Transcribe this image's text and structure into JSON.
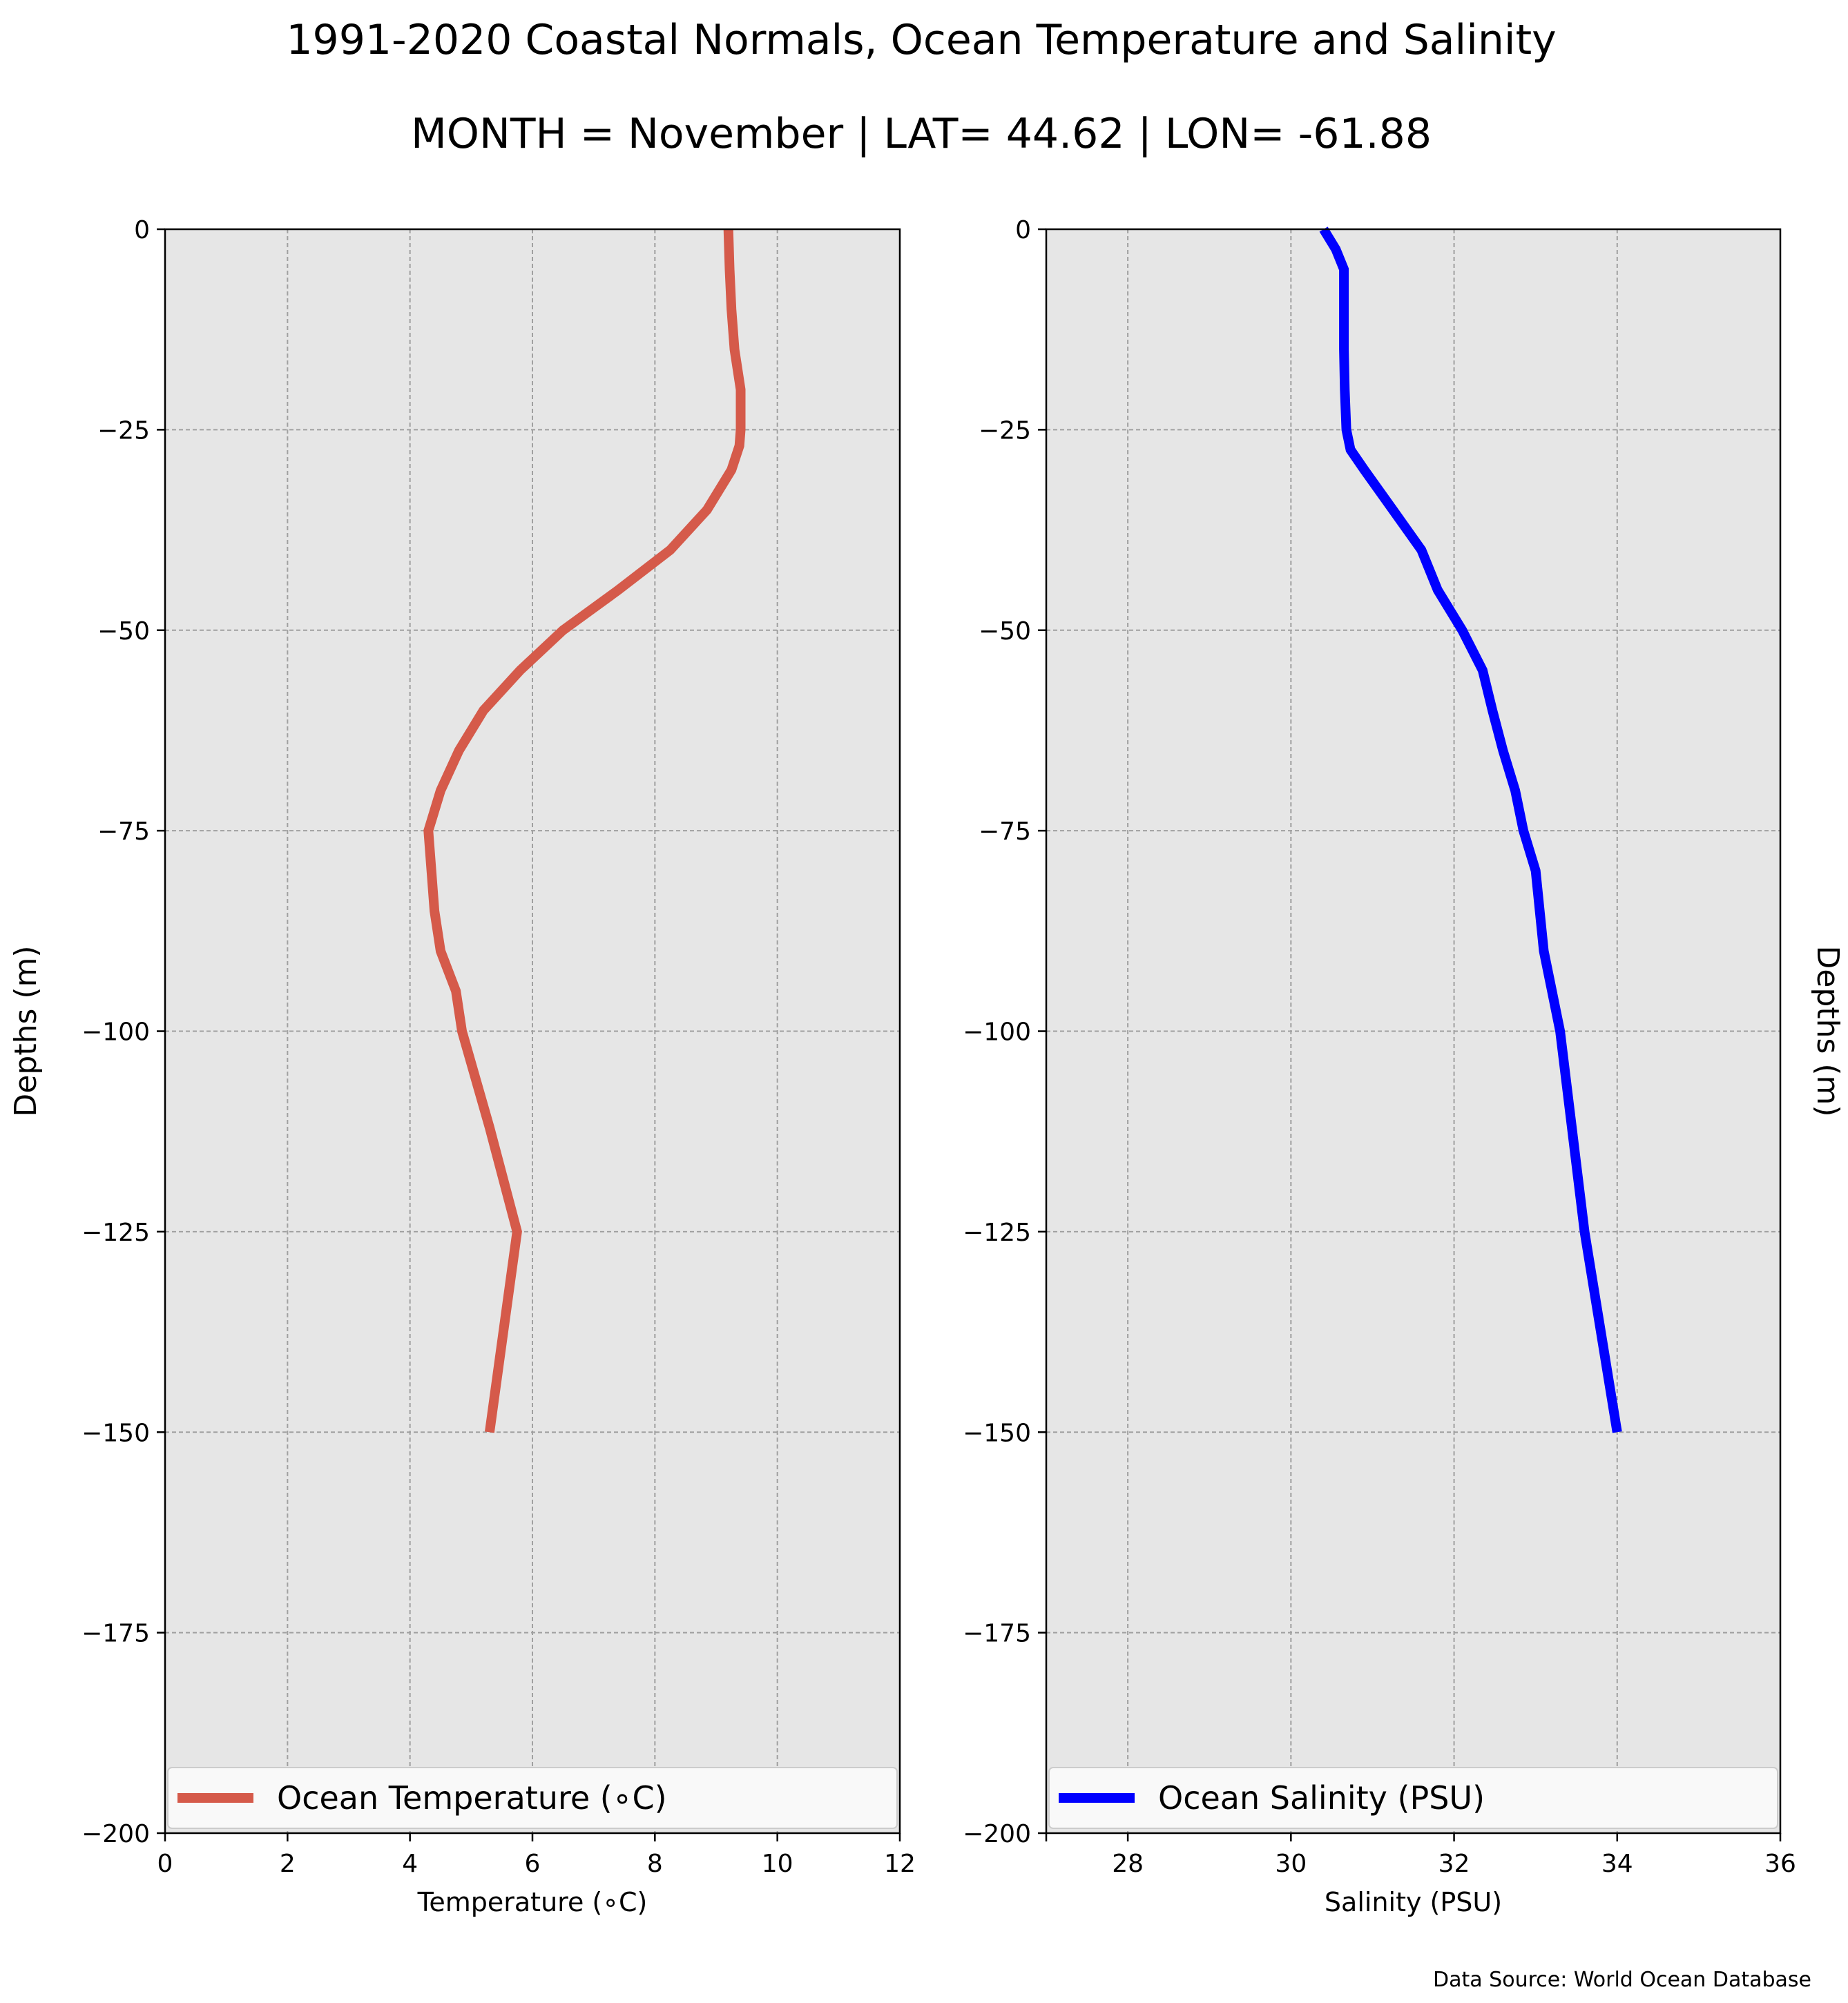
{
  "figure": {
    "title_line1": "1991-2020 Coastal Normals, Ocean Temperature and Salinity",
    "title_line2": "MONTH = November | LAT= 44.62 | LON= -61.88",
    "source": "Data Source: World Ocean Database"
  },
  "chart_data": [
    {
      "type": "line",
      "ylabel": "Depths (m)",
      "xlabel": "Temperature (∘C)",
      "xlim": [
        0,
        12
      ],
      "ylim": [
        -200,
        0
      ],
      "xticks": [
        0,
        2,
        4,
        6,
        8,
        10,
        12
      ],
      "yticks": [
        0,
        -25,
        -50,
        -75,
        -100,
        -125,
        -150,
        -175,
        -200
      ],
      "ytick_labels": [
        "0",
        "−25",
        "−50",
        "−75",
        "−100",
        "−125",
        "−150",
        "−175",
        "−200"
      ],
      "grid": true,
      "legend_placement": "bottom",
      "series": [
        {
          "name": "Ocean Temperature (∘C)",
          "color": "#d55a4a",
          "x": [
            9.2,
            9.22,
            9.25,
            9.3,
            9.4,
            9.4,
            9.38,
            9.25,
            8.85,
            8.25,
            7.4,
            6.5,
            5.8,
            5.2,
            4.8,
            4.5,
            4.3,
            4.35,
            4.4,
            4.5,
            4.75,
            4.85,
            5.3,
            5.75,
            5.3
          ],
          "y": [
            0,
            -5,
            -10,
            -15,
            -20,
            -25,
            -27,
            -30,
            -35,
            -40,
            -45,
            -50,
            -55,
            -60,
            -65,
            -70,
            -75,
            -80,
            -85,
            -90,
            -95,
            -100,
            -112,
            -125,
            -150
          ]
        }
      ]
    },
    {
      "type": "line",
      "ylabel": "Depths (m)",
      "xlabel": "Salinity (PSU)",
      "xlim": [
        27,
        36
      ],
      "ylim": [
        -200,
        0
      ],
      "xticks": [
        28,
        30,
        32,
        34,
        36
      ],
      "yticks": [
        0,
        -25,
        -50,
        -75,
        -100,
        -125,
        -150,
        -175,
        -200
      ],
      "ytick_labels": [
        "0",
        "−25",
        "−50",
        "−75",
        "−100",
        "−125",
        "−150",
        "−175",
        "−200"
      ],
      "grid": true,
      "legend_placement": "bottom",
      "series": [
        {
          "name": "Ocean Salinity (PSU)",
          "color": "#0000ff",
          "x": [
            30.4,
            30.55,
            30.65,
            30.65,
            30.65,
            30.66,
            30.68,
            30.73,
            30.9,
            31.25,
            31.6,
            31.8,
            32.1,
            32.35,
            32.47,
            32.6,
            32.75,
            32.85,
            33.0,
            33.1,
            33.2,
            33.3,
            33.6,
            34.0
          ],
          "y": [
            0,
            -2.5,
            -5,
            -10,
            -15,
            -20,
            -25,
            -27.5,
            -30,
            -35,
            -40,
            -45,
            -50,
            -55,
            -60,
            -65,
            -70,
            -75,
            -80,
            -90,
            -95,
            -100,
            -125,
            -150
          ]
        }
      ]
    }
  ]
}
